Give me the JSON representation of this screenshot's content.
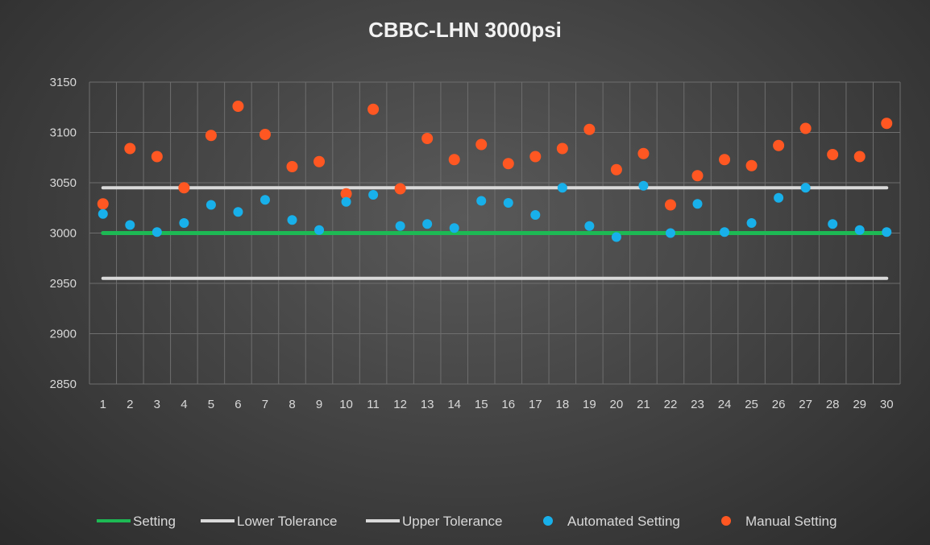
{
  "chart_data": {
    "type": "scatter",
    "title": "CBBC-LHN 3000psi",
    "xlabel": "",
    "ylabel": "",
    "ylim": [
      2850,
      3150
    ],
    "yticks": [
      2850,
      2900,
      2950,
      3000,
      3050,
      3100,
      3150
    ],
    "x": [
      1,
      2,
      3,
      4,
      5,
      6,
      7,
      8,
      9,
      10,
      11,
      12,
      13,
      14,
      15,
      16,
      17,
      18,
      19,
      20,
      21,
      22,
      23,
      24,
      25,
      26,
      27,
      28,
      29,
      30
    ],
    "grid": true,
    "legend_position": "bottom",
    "colors": {
      "setting": "#1db954",
      "tolerance": "#d9d9d9",
      "automated": "#18b0ea",
      "manual": "#ff5722",
      "grid": "#6e6e6e",
      "text": "#d9d9d9",
      "title": "#f2f2f2"
    },
    "series": [
      {
        "name": "Setting",
        "kind": "line",
        "value": 3000
      },
      {
        "name": "Lower Tolerance",
        "kind": "line",
        "value": 2955
      },
      {
        "name": "Upper Tolerance",
        "kind": "line",
        "value": 3045
      },
      {
        "name": "Automated Setting",
        "kind": "scatter",
        "values": [
          3019,
          3008,
          3001,
          3010,
          3028,
          3021,
          3033,
          3013,
          3003,
          3031,
          3038,
          3007,
          3009,
          3005,
          3032,
          3030,
          3018,
          3045,
          3007,
          2996,
          3047,
          3000,
          3029,
          3001,
          3010,
          3035,
          3045,
          3009,
          3003,
          3001
        ]
      },
      {
        "name": "Manual Setting",
        "kind": "scatter",
        "values": [
          3029,
          3084,
          3076,
          3045,
          3097,
          3126,
          3098,
          3066,
          3071,
          3039,
          3123,
          3044,
          3094,
          3073,
          3088,
          3069,
          3076,
          3084,
          3103,
          3063,
          3079,
          3028,
          3057,
          3073,
          3067,
          3087,
          3104,
          3078,
          3076,
          3109
        ]
      }
    ]
  }
}
